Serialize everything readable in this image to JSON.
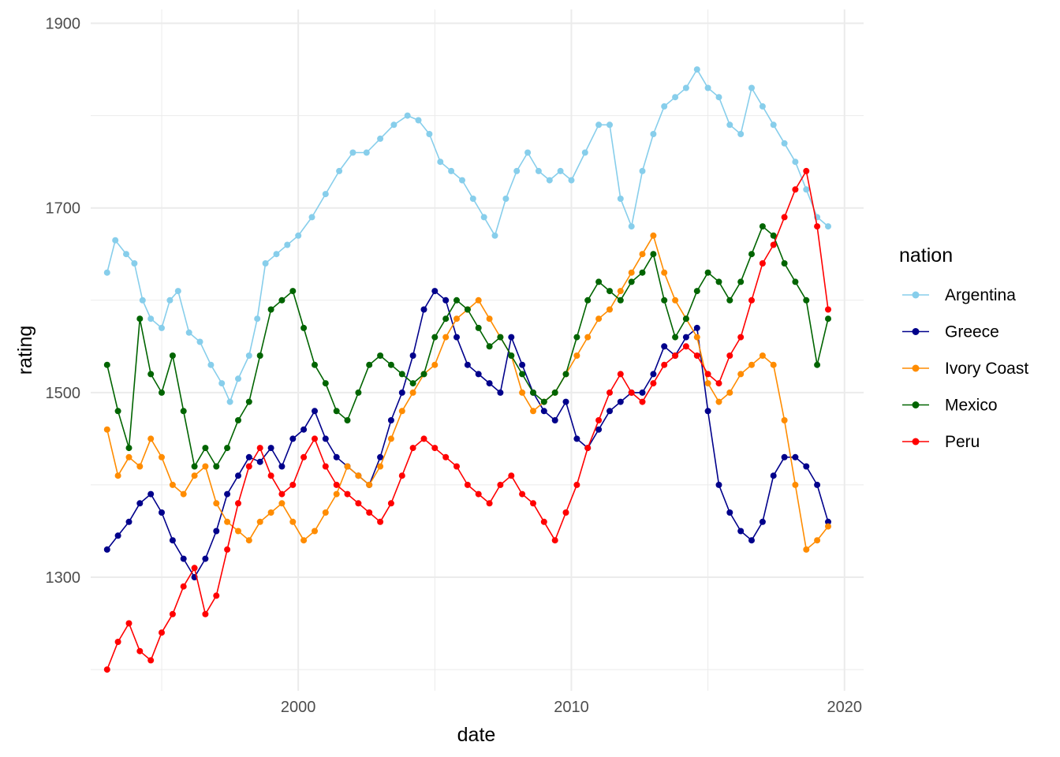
{
  "chart_data": {
    "type": "line",
    "xlabel": "date",
    "ylabel": "rating",
    "legend_title": "nation",
    "legend_position": "right",
    "grid": true,
    "xlim": [
      1992.4,
      2020.7
    ],
    "ylim": [
      1177,
      1915
    ],
    "x_ticks": [
      2000,
      2010,
      2020
    ],
    "x_tick_labels": [
      "2000",
      "2010",
      "2020"
    ],
    "y_ticks": [
      1300,
      1500,
      1700,
      1900
    ],
    "y_tick_labels": [
      "1300",
      "1500",
      "1700",
      "1900"
    ],
    "series": [
      {
        "name": "Argentina",
        "color": "#87CEEB",
        "x": [
          1993.0,
          1993.3,
          1993.7,
          1994.0,
          1994.3,
          1994.6,
          1995.0,
          1995.3,
          1995.6,
          1996.0,
          1996.4,
          1996.8,
          1997.2,
          1997.5,
          1997.8,
          1998.2,
          1998.5,
          1998.8,
          1999.2,
          1999.6,
          2000.0,
          2000.5,
          2001.0,
          2001.5,
          2002.0,
          2002.5,
          2003.0,
          2003.5,
          2004.0,
          2004.4,
          2004.8,
          2005.2,
          2005.6,
          2006.0,
          2006.4,
          2006.8,
          2007.2,
          2007.6,
          2008.0,
          2008.4,
          2008.8,
          2009.2,
          2009.6,
          2010.0,
          2010.5,
          2011.0,
          2011.4,
          2011.8,
          2012.2,
          2012.6,
          2013.0,
          2013.4,
          2013.8,
          2014.2,
          2014.6,
          2015.0,
          2015.4,
          2015.8,
          2016.2,
          2016.6,
          2017.0,
          2017.4,
          2017.8,
          2018.2,
          2018.6,
          2019.0,
          2019.4
        ],
        "y": [
          1630,
          1665,
          1650,
          1640,
          1600,
          1580,
          1570,
          1600,
          1610,
          1565,
          1555,
          1530,
          1510,
          1490,
          1515,
          1540,
          1580,
          1640,
          1650,
          1660,
          1670,
          1690,
          1715,
          1740,
          1760,
          1760,
          1775,
          1790,
          1800,
          1795,
          1780,
          1750,
          1740,
          1730,
          1710,
          1690,
          1670,
          1710,
          1740,
          1760,
          1740,
          1730,
          1740,
          1730,
          1760,
          1790,
          1790,
          1710,
          1680,
          1740,
          1780,
          1810,
          1820,
          1830,
          1850,
          1830,
          1820,
          1790,
          1780,
          1830,
          1810,
          1790,
          1770,
          1750,
          1720,
          1690,
          1680
        ]
      },
      {
        "name": "Greece",
        "color": "#00008B",
        "x": [
          1993.0,
          1993.4,
          1993.8,
          1994.2,
          1994.6,
          1995.0,
          1995.4,
          1995.8,
          1996.2,
          1996.6,
          1997.0,
          1997.4,
          1997.8,
          1998.2,
          1998.6,
          1999.0,
          1999.4,
          1999.8,
          2000.2,
          2000.6,
          2001.0,
          2001.4,
          2001.8,
          2002.2,
          2002.6,
          2003.0,
          2003.4,
          2003.8,
          2004.2,
          2004.6,
          2005.0,
          2005.4,
          2005.8,
          2006.2,
          2006.6,
          2007.0,
          2007.4,
          2007.8,
          2008.2,
          2008.6,
          2009.0,
          2009.4,
          2009.8,
          2010.2,
          2010.6,
          2011.0,
          2011.4,
          2011.8,
          2012.2,
          2012.6,
          2013.0,
          2013.4,
          2013.8,
          2014.2,
          2014.6,
          2015.0,
          2015.4,
          2015.8,
          2016.2,
          2016.6,
          2017.0,
          2017.4,
          2017.8,
          2018.2,
          2018.6,
          2019.0,
          2019.4
        ],
        "y": [
          1330,
          1345,
          1360,
          1380,
          1390,
          1370,
          1340,
          1320,
          1300,
          1320,
          1350,
          1390,
          1410,
          1430,
          1425,
          1440,
          1420,
          1450,
          1460,
          1480,
          1450,
          1430,
          1420,
          1410,
          1400,
          1430,
          1470,
          1500,
          1540,
          1590,
          1610,
          1600,
          1560,
          1530,
          1520,
          1510,
          1500,
          1560,
          1530,
          1500,
          1480,
          1470,
          1490,
          1450,
          1440,
          1460,
          1480,
          1490,
          1500,
          1500,
          1520,
          1550,
          1540,
          1560,
          1570,
          1480,
          1400,
          1370,
          1350,
          1340,
          1360,
          1410,
          1430,
          1430,
          1420,
          1400,
          1360
        ]
      },
      {
        "name": "Ivory Coast",
        "color": "#FF8C00",
        "x": [
          1993.0,
          1993.4,
          1993.8,
          1994.2,
          1994.6,
          1995.0,
          1995.4,
          1995.8,
          1996.2,
          1996.6,
          1997.0,
          1997.4,
          1997.8,
          1998.2,
          1998.6,
          1999.0,
          1999.4,
          1999.8,
          2000.2,
          2000.6,
          2001.0,
          2001.4,
          2001.8,
          2002.2,
          2002.6,
          2003.0,
          2003.4,
          2003.8,
          2004.2,
          2004.6,
          2005.0,
          2005.4,
          2005.8,
          2006.2,
          2006.6,
          2007.0,
          2007.4,
          2007.8,
          2008.2,
          2008.6,
          2009.0,
          2009.4,
          2009.8,
          2010.2,
          2010.6,
          2011.0,
          2011.4,
          2011.8,
          2012.2,
          2012.6,
          2013.0,
          2013.4,
          2013.8,
          2014.2,
          2014.6,
          2015.0,
          2015.4,
          2015.8,
          2016.2,
          2016.6,
          2017.0,
          2017.4,
          2017.8,
          2018.2,
          2018.6,
          2019.0,
          2019.4
        ],
        "y": [
          1460,
          1410,
          1430,
          1420,
          1450,
          1430,
          1400,
          1390,
          1410,
          1420,
          1380,
          1360,
          1350,
          1340,
          1360,
          1370,
          1380,
          1360,
          1340,
          1350,
          1370,
          1390,
          1420,
          1410,
          1400,
          1420,
          1450,
          1480,
          1500,
          1520,
          1530,
          1560,
          1580,
          1590,
          1600,
          1580,
          1560,
          1540,
          1500,
          1480,
          1490,
          1500,
          1520,
          1540,
          1560,
          1580,
          1590,
          1610,
          1630,
          1650,
          1670,
          1630,
          1600,
          1580,
          1560,
          1510,
          1490,
          1500,
          1520,
          1530,
          1540,
          1530,
          1470,
          1400,
          1330,
          1340,
          1355
        ]
      },
      {
        "name": "Mexico",
        "color": "#006400",
        "x": [
          1993.0,
          1993.4,
          1993.8,
          1994.2,
          1994.6,
          1995.0,
          1995.4,
          1995.8,
          1996.2,
          1996.6,
          1997.0,
          1997.4,
          1997.8,
          1998.2,
          1998.6,
          1999.0,
          1999.4,
          1999.8,
          2000.2,
          2000.6,
          2001.0,
          2001.4,
          2001.8,
          2002.2,
          2002.6,
          2003.0,
          2003.4,
          2003.8,
          2004.2,
          2004.6,
          2005.0,
          2005.4,
          2005.8,
          2006.2,
          2006.6,
          2007.0,
          2007.4,
          2007.8,
          2008.2,
          2008.6,
          2009.0,
          2009.4,
          2009.8,
          2010.2,
          2010.6,
          2011.0,
          2011.4,
          2011.8,
          2012.2,
          2012.6,
          2013.0,
          2013.4,
          2013.8,
          2014.2,
          2014.6,
          2015.0,
          2015.4,
          2015.8,
          2016.2,
          2016.6,
          2017.0,
          2017.4,
          2017.8,
          2018.2,
          2018.6,
          2019.0,
          2019.4
        ],
        "y": [
          1530,
          1480,
          1440,
          1580,
          1520,
          1500,
          1540,
          1480,
          1420,
          1440,
          1420,
          1440,
          1470,
          1490,
          1540,
          1590,
          1600,
          1610,
          1570,
          1530,
          1510,
          1480,
          1470,
          1500,
          1530,
          1540,
          1530,
          1520,
          1510,
          1520,
          1560,
          1580,
          1600,
          1590,
          1570,
          1550,
          1560,
          1540,
          1520,
          1500,
          1490,
          1500,
          1520,
          1560,
          1600,
          1620,
          1610,
          1600,
          1620,
          1630,
          1650,
          1600,
          1560,
          1580,
          1610,
          1630,
          1620,
          1600,
          1620,
          1650,
          1680,
          1670,
          1640,
          1620,
          1600,
          1530,
          1580
        ]
      },
      {
        "name": "Peru",
        "color": "#FF0000",
        "x": [
          1993.0,
          1993.4,
          1993.8,
          1994.2,
          1994.6,
          1995.0,
          1995.4,
          1995.8,
          1996.2,
          1996.6,
          1997.0,
          1997.4,
          1997.8,
          1998.2,
          1998.6,
          1999.0,
          1999.4,
          1999.8,
          2000.2,
          2000.6,
          2001.0,
          2001.4,
          2001.8,
          2002.2,
          2002.6,
          2003.0,
          2003.4,
          2003.8,
          2004.2,
          2004.6,
          2005.0,
          2005.4,
          2005.8,
          2006.2,
          2006.6,
          2007.0,
          2007.4,
          2007.8,
          2008.2,
          2008.6,
          2009.0,
          2009.4,
          2009.8,
          2010.2,
          2010.6,
          2011.0,
          2011.4,
          2011.8,
          2012.2,
          2012.6,
          2013.0,
          2013.4,
          2013.8,
          2014.2,
          2014.6,
          2015.0,
          2015.4,
          2015.8,
          2016.2,
          2016.6,
          2017.0,
          2017.4,
          2017.8,
          2018.2,
          2018.6,
          2019.0,
          2019.4
        ],
        "y": [
          1200,
          1230,
          1250,
          1220,
          1210,
          1240,
          1260,
          1290,
          1310,
          1260,
          1280,
          1330,
          1380,
          1420,
          1440,
          1410,
          1390,
          1400,
          1430,
          1450,
          1420,
          1400,
          1390,
          1380,
          1370,
          1360,
          1380,
          1410,
          1440,
          1450,
          1440,
          1430,
          1420,
          1400,
          1390,
          1380,
          1400,
          1410,
          1390,
          1380,
          1360,
          1340,
          1370,
          1400,
          1440,
          1470,
          1500,
          1520,
          1500,
          1490,
          1510,
          1530,
          1540,
          1550,
          1540,
          1520,
          1510,
          1540,
          1560,
          1600,
          1640,
          1660,
          1690,
          1720,
          1740,
          1680,
          1590
        ]
      }
    ]
  }
}
